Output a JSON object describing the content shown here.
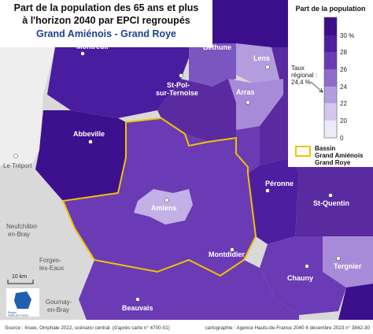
{
  "header": {
    "title_lines": [
      "Part de la population des 65 ans et plus",
      "à l'horizon 2040 par EPCI regroupés"
    ],
    "subtitle": "Grand Amiénois - Grand Roye"
  },
  "legend": {
    "title": "Part de la population",
    "ticks": [
      "30 %",
      "28",
      "26",
      "24",
      "22",
      "20",
      "0"
    ],
    "regional_rate": [
      "Taux",
      "régional :",
      "24,4 %"
    ],
    "basin": [
      "Bassin",
      "Grand Amiénois",
      "Grand Roye"
    ]
  },
  "places": {
    "montreuil": "Montreuil",
    "bethune": "Béthune",
    "lens": "Lens",
    "st_pol": [
      "St-Pol-",
      "sur-Ternoise"
    ],
    "arras": "Arras",
    "abbeville": "Abbeville",
    "le_treport": "Le Tréport",
    "amiens": "Amiens",
    "peronne": "Péronne",
    "st_quentin": "St-Quentin",
    "neufchatel": [
      "Neufchâtel-",
      "en-Bray"
    ],
    "forges": [
      "Forges-",
      "les-Eaux"
    ],
    "montdidier": "Montdidier",
    "tergnier": "Tergnier",
    "chauny": "Chauny",
    "gournay": [
      "Gournay-",
      "en-Bray"
    ],
    "beauvais": "Beauvais"
  },
  "scale": "10 km",
  "logo": [
    "Région",
    "Hauts-de-France"
  ],
  "footer": {
    "source": "Source : Insee, Omphale 2022, scénario central. (d'après carte n° 4700-01)",
    "credit": "cartographie : Agence Hauts-de-France 2040    8 décembre 2023    n° 3842-30"
  }
}
